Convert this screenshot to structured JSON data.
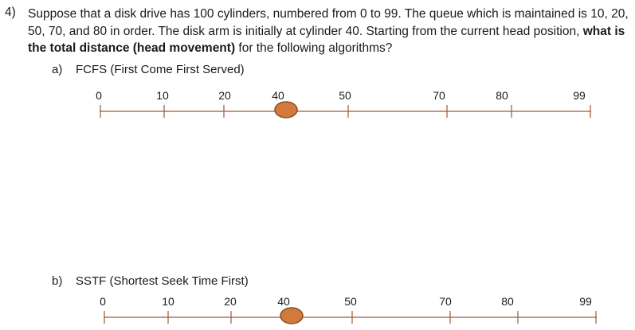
{
  "question": {
    "number": "4)",
    "text_1": "Suppose that a disk drive has 100 cylinders, numbered from 0 to 99. The queue which is maintained is 10, 20, 50, 70, and 80 in order. The disk arm is initially at cylinder 40. Starting from the current head position, ",
    "bold": "what is the total distance (head movement)",
    "text_2": " for the following algorithms?"
  },
  "parts": [
    {
      "letter": "a)",
      "label": "FCFS (First Come First Served)"
    },
    {
      "letter": "b)",
      "label": "SSTF (Shortest Seek Time First)"
    }
  ],
  "axis": {
    "ticks": [
      "0",
      "10",
      "20",
      "40",
      "50",
      "70",
      "80",
      "99"
    ],
    "head_position": "40",
    "line_color": "#9c5a32",
    "head_fill": "#d27a3e",
    "head_stroke": "#8a4a22"
  }
}
